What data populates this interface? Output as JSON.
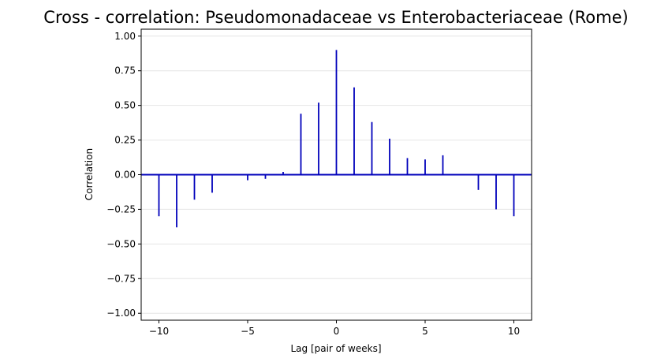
{
  "chart_data": {
    "type": "bar",
    "subtype": "stem",
    "title": "Cross - correlation: Pseudomonadaceae vs Enterobacteriaceae (Rome)",
    "xlabel": "Lag [pair of weeks]",
    "ylabel": "Correlation",
    "xlim": [
      -11,
      11
    ],
    "ylim": [
      -1.05,
      1.05
    ],
    "xticks": [
      -10,
      -5,
      0,
      5,
      10
    ],
    "xtick_labels": [
      "−10",
      "−5",
      "0",
      "5",
      "10"
    ],
    "yticks": [
      -1.0,
      -0.75,
      -0.5,
      -0.25,
      0.0,
      0.25,
      0.5,
      0.75,
      1.0
    ],
    "ytick_labels": [
      "−1.00",
      "−0.75",
      "−0.50",
      "−0.25",
      "0.00",
      "0.25",
      "0.50",
      "0.75",
      "1.00"
    ],
    "grid": "horizontal",
    "baseline": 0,
    "color": "#0000bb",
    "baseline_color": "#0000bb",
    "series": [
      {
        "x": [
          -10,
          -9,
          -8,
          -7,
          -6,
          -5,
          -4,
          -3,
          -2,
          -1,
          0,
          1,
          2,
          3,
          4,
          5,
          6,
          7,
          8,
          9,
          10
        ],
        "values": [
          -0.3,
          -0.38,
          -0.18,
          -0.13,
          0.0,
          -0.04,
          -0.03,
          0.02,
          0.44,
          0.52,
          0.9,
          0.63,
          0.38,
          0.26,
          0.12,
          0.11,
          0.14,
          0.0,
          -0.11,
          -0.25,
          -0.3
        ]
      }
    ]
  }
}
